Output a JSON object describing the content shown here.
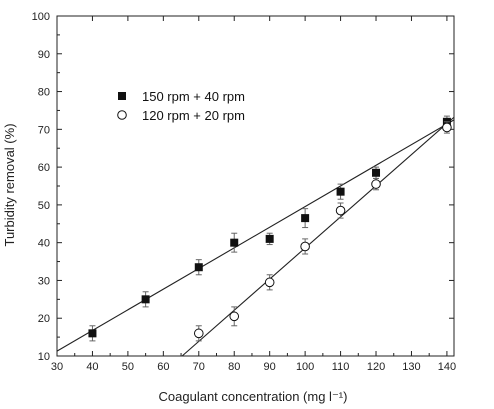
{
  "chart_data": {
    "type": "scatter",
    "xlabel": "Coagulant concentration (mg l⁻¹)",
    "ylabel": "Turbidity removal (%)",
    "xlim": [
      30,
      142
    ],
    "ylim": [
      10,
      100
    ],
    "x_ticks": [
      30,
      40,
      50,
      60,
      70,
      80,
      90,
      100,
      110,
      120,
      130,
      140
    ],
    "y_ticks": [
      10,
      20,
      30,
      40,
      50,
      60,
      70,
      80,
      90,
      100
    ],
    "grid": false,
    "legend_position": "upper-left",
    "series": [
      {
        "name": "150 rpm + 40 rpm",
        "marker": "filled-square",
        "color": "#111111",
        "x": [
          40,
          55,
          70,
          80,
          90,
          100,
          110,
          120,
          140
        ],
        "y": [
          16,
          25,
          33.5,
          40,
          41,
          46.5,
          53.5,
          58.5,
          72
        ],
        "error": [
          2,
          2,
          2,
          2.5,
          1.5,
          2.5,
          2,
          1.5,
          1.5
        ],
        "fit_line": {
          "x": [
            30,
            142
          ],
          "y": [
            11.3,
            72.5
          ]
        }
      },
      {
        "name": "120 rpm + 20 rpm",
        "marker": "open-circle",
        "color": "#111111",
        "x": [
          70,
          80,
          90,
          100,
          110,
          120,
          140
        ],
        "y": [
          16,
          20.5,
          29.5,
          39,
          48.5,
          55.5,
          70.5
        ],
        "error": [
          2,
          2.5,
          2,
          2,
          2,
          1.5,
          1.5
        ],
        "fit_line": {
          "x": [
            65.3,
            142
          ],
          "y": [
            10,
            73.2
          ]
        }
      }
    ]
  }
}
